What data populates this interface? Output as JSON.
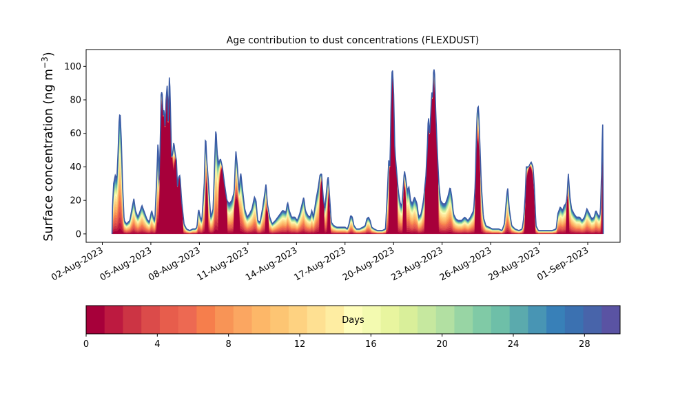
{
  "chart_data": {
    "type": "area",
    "title": "Age contribution to dust concentrations (FLEXDUST)",
    "ylabel_main": "Surface concentration (ng m",
    "ylabel_exp": "−3",
    "ylabel_close": ")",
    "ylim": [
      -5,
      110
    ],
    "yticks": [
      0,
      20,
      40,
      60,
      80,
      100
    ],
    "xlim_day": [
      0,
      33
    ],
    "xticks": [
      {
        "label": "02-Aug-2023",
        "day": 1
      },
      {
        "label": "05-Aug-2023",
        "day": 4
      },
      {
        "label": "08-Aug-2023",
        "day": 7
      },
      {
        "label": "11-Aug-2023",
        "day": 10
      },
      {
        "label": "14-Aug-2023",
        "day": 13
      },
      {
        "label": "17-Aug-2023",
        "day": 16
      },
      {
        "label": "20-Aug-2023",
        "day": 19
      },
      {
        "label": "23-Aug-2023",
        "day": 22
      },
      {
        "label": "26-Aug-2023",
        "day": 25
      },
      {
        "label": "29-Aug-2023",
        "day": 28
      },
      {
        "label": "01-Sep-2023",
        "day": 31
      }
    ],
    "total_profile": [
      [
        1.6,
        0
      ],
      [
        1.62,
        14
      ],
      [
        1.7,
        30
      ],
      [
        1.8,
        35
      ],
      [
        1.9,
        33
      ],
      [
        1.97,
        48
      ],
      [
        2.05,
        70
      ],
      [
        2.1,
        72
      ],
      [
        2.18,
        55
      ],
      [
        2.25,
        30
      ],
      [
        2.35,
        8
      ],
      [
        2.5,
        6
      ],
      [
        2.7,
        8
      ],
      [
        2.85,
        16
      ],
      [
        2.95,
        21
      ],
      [
        3.05,
        14
      ],
      [
        3.2,
        10
      ],
      [
        3.35,
        14
      ],
      [
        3.45,
        17
      ],
      [
        3.6,
        13
      ],
      [
        3.75,
        9
      ],
      [
        3.9,
        7
      ],
      [
        4.05,
        14
      ],
      [
        4.15,
        10
      ],
      [
        4.25,
        8
      ],
      [
        4.38,
        38
      ],
      [
        4.45,
        58
      ],
      [
        4.5,
        32
      ],
      [
        4.58,
        54
      ],
      [
        4.64,
        85
      ],
      [
        4.7,
        84
      ],
      [
        4.76,
        70
      ],
      [
        4.82,
        75
      ],
      [
        4.88,
        63
      ],
      [
        4.94,
        80
      ],
      [
        5.02,
        90
      ],
      [
        5.08,
        65
      ],
      [
        5.15,
        97
      ],
      [
        5.22,
        72
      ],
      [
        5.28,
        45
      ],
      [
        5.35,
        48
      ],
      [
        5.42,
        55
      ],
      [
        5.5,
        48
      ],
      [
        5.58,
        44
      ],
      [
        5.65,
        28
      ],
      [
        5.72,
        34
      ],
      [
        5.8,
        35
      ],
      [
        5.9,
        20
      ],
      [
        6.05,
        6
      ],
      [
        6.2,
        3
      ],
      [
        6.4,
        2
      ],
      [
        6.6,
        3
      ],
      [
        6.75,
        3
      ],
      [
        6.85,
        4
      ],
      [
        6.95,
        15
      ],
      [
        7.05,
        10
      ],
      [
        7.15,
        8
      ],
      [
        7.3,
        30
      ],
      [
        7.38,
        60
      ],
      [
        7.45,
        45
      ],
      [
        7.55,
        32
      ],
      [
        7.7,
        10
      ],
      [
        7.85,
        15
      ],
      [
        7.95,
        45
      ],
      [
        8.02,
        64
      ],
      [
        8.1,
        48
      ],
      [
        8.2,
        42
      ],
      [
        8.3,
        45
      ],
      [
        8.42,
        40
      ],
      [
        8.55,
        30
      ],
      [
        8.7,
        20
      ],
      [
        8.85,
        18
      ],
      [
        9.0,
        20
      ],
      [
        9.15,
        25
      ],
      [
        9.25,
        50
      ],
      [
        9.35,
        40
      ],
      [
        9.45,
        25
      ],
      [
        9.55,
        37
      ],
      [
        9.65,
        28
      ],
      [
        9.8,
        15
      ],
      [
        9.95,
        10
      ],
      [
        10.1,
        12
      ],
      [
        10.25,
        15
      ],
      [
        10.4,
        22
      ],
      [
        10.5,
        20
      ],
      [
        10.6,
        8
      ],
      [
        10.75,
        7
      ],
      [
        10.9,
        15
      ],
      [
        11.05,
        25
      ],
      [
        11.12,
        30
      ],
      [
        11.2,
        18
      ],
      [
        11.35,
        10
      ],
      [
        11.5,
        6
      ],
      [
        11.7,
        8
      ],
      [
        11.85,
        10
      ],
      [
        12.0,
        12
      ],
      [
        12.15,
        14
      ],
      [
        12.35,
        13
      ],
      [
        12.45,
        19
      ],
      [
        12.55,
        14
      ],
      [
        12.7,
        10
      ],
      [
        12.9,
        10
      ],
      [
        13.05,
        8
      ],
      [
        13.2,
        12
      ],
      [
        13.35,
        18
      ],
      [
        13.45,
        22
      ],
      [
        13.55,
        14
      ],
      [
        13.7,
        11
      ],
      [
        13.85,
        10
      ],
      [
        13.95,
        14
      ],
      [
        14.05,
        10
      ],
      [
        14.2,
        20
      ],
      [
        14.35,
        28
      ],
      [
        14.45,
        35
      ],
      [
        14.55,
        36
      ],
      [
        14.65,
        22
      ],
      [
        14.75,
        15
      ],
      [
        14.85,
        25
      ],
      [
        14.95,
        35
      ],
      [
        15.05,
        22
      ],
      [
        15.15,
        7
      ],
      [
        15.3,
        5
      ],
      [
        15.5,
        4
      ],
      [
        15.7,
        4
      ],
      [
        16.0,
        4
      ],
      [
        16.15,
        3
      ],
      [
        16.25,
        6
      ],
      [
        16.35,
        11
      ],
      [
        16.45,
        10
      ],
      [
        16.55,
        5
      ],
      [
        16.7,
        3
      ],
      [
        16.9,
        3
      ],
      [
        17.1,
        4
      ],
      [
        17.25,
        5
      ],
      [
        17.35,
        9
      ],
      [
        17.45,
        10
      ],
      [
        17.55,
        8
      ],
      [
        17.65,
        4
      ],
      [
        17.8,
        3
      ],
      [
        18.0,
        2
      ],
      [
        18.3,
        2
      ],
      [
        18.5,
        3
      ],
      [
        18.62,
        25
      ],
      [
        18.7,
        44
      ],
      [
        18.78,
        40
      ],
      [
        18.85,
        80
      ],
      [
        18.92,
        101
      ],
      [
        19.0,
        86
      ],
      [
        19.08,
        50
      ],
      [
        19.2,
        36
      ],
      [
        19.3,
        25
      ],
      [
        19.42,
        18
      ],
      [
        19.52,
        17
      ],
      [
        19.6,
        28
      ],
      [
        19.67,
        38
      ],
      [
        19.75,
        33
      ],
      [
        19.85,
        26
      ],
      [
        19.95,
        28
      ],
      [
        20.05,
        20
      ],
      [
        20.15,
        18
      ],
      [
        20.3,
        22
      ],
      [
        20.45,
        18
      ],
      [
        20.55,
        10
      ],
      [
        20.7,
        12
      ],
      [
        20.85,
        20
      ],
      [
        21.0,
        35
      ],
      [
        21.1,
        55
      ],
      [
        21.15,
        72
      ],
      [
        21.22,
        58
      ],
      [
        21.3,
        72
      ],
      [
        21.36,
        85
      ],
      [
        21.42,
        80
      ],
      [
        21.48,
        100
      ],
      [
        21.54,
        95
      ],
      [
        21.6,
        75
      ],
      [
        21.7,
        50
      ],
      [
        21.8,
        30
      ],
      [
        21.9,
        20
      ],
      [
        22.05,
        18
      ],
      [
        22.2,
        18
      ],
      [
        22.35,
        22
      ],
      [
        22.5,
        28
      ],
      [
        22.6,
        22
      ],
      [
        22.7,
        12
      ],
      [
        22.85,
        9
      ],
      [
        23.0,
        8
      ],
      [
        23.2,
        8
      ],
      [
        23.4,
        10
      ],
      [
        23.6,
        8
      ],
      [
        23.75,
        10
      ],
      [
        23.85,
        12
      ],
      [
        23.95,
        14
      ],
      [
        24.05,
        30
      ],
      [
        24.12,
        60
      ],
      [
        24.18,
        75
      ],
      [
        24.25,
        76
      ],
      [
        24.32,
        58
      ],
      [
        24.42,
        30
      ],
      [
        24.55,
        10
      ],
      [
        24.7,
        5
      ],
      [
        24.9,
        4
      ],
      [
        25.1,
        3
      ],
      [
        25.3,
        3
      ],
      [
        25.5,
        3
      ],
      [
        25.7,
        2
      ],
      [
        25.85,
        6
      ],
      [
        25.95,
        18
      ],
      [
        26.05,
        28
      ],
      [
        26.15,
        15
      ],
      [
        26.3,
        5
      ],
      [
        26.5,
        3
      ],
      [
        26.75,
        2
      ],
      [
        26.95,
        3
      ],
      [
        27.05,
        10
      ],
      [
        27.15,
        25
      ],
      [
        27.2,
        40
      ],
      [
        27.35,
        40
      ],
      [
        27.5,
        43
      ],
      [
        27.62,
        40
      ],
      [
        27.7,
        28
      ],
      [
        27.8,
        5
      ],
      [
        27.95,
        2
      ],
      [
        28.2,
        2
      ],
      [
        28.5,
        2
      ],
      [
        28.8,
        2
      ],
      [
        29.05,
        3
      ],
      [
        29.15,
        12
      ],
      [
        29.3,
        16
      ],
      [
        29.45,
        14
      ],
      [
        29.55,
        17
      ],
      [
        29.65,
        18
      ],
      [
        29.72,
        22
      ],
      [
        29.8,
        36
      ],
      [
        29.9,
        22
      ],
      [
        30.0,
        15
      ],
      [
        30.15,
        12
      ],
      [
        30.3,
        10
      ],
      [
        30.5,
        10
      ],
      [
        30.65,
        8
      ],
      [
        30.8,
        10
      ],
      [
        30.95,
        15
      ],
      [
        31.1,
        12
      ],
      [
        31.25,
        9
      ],
      [
        31.4,
        10
      ],
      [
        31.5,
        14
      ],
      [
        31.6,
        12
      ],
      [
        31.7,
        10
      ],
      [
        31.78,
        12
      ],
      [
        31.85,
        35
      ],
      [
        31.92,
        68
      ],
      [
        31.95,
        55
      ],
      [
        31.96,
        0
      ]
    ],
    "young_peaks": [
      [
        4.35,
        4.5,
        5.5
      ],
      [
        4.5,
        5.4,
        96
      ],
      [
        5.3,
        6.0,
        48
      ],
      [
        7.35,
        7.55,
        30
      ],
      [
        8.15,
        8.75,
        40
      ],
      [
        9.1,
        9.5,
        20
      ],
      [
        11.05,
        11.3,
        14
      ],
      [
        14.4,
        14.75,
        32
      ],
      [
        14.9,
        15.1,
        22
      ],
      [
        18.7,
        19.25,
        98
      ],
      [
        19.55,
        19.8,
        28
      ],
      [
        20.9,
        21.8,
        93
      ],
      [
        24.0,
        24.4,
        55
      ],
      [
        27.1,
        27.75,
        40
      ],
      [
        29.65,
        29.85,
        22
      ],
      [
        31.85,
        31.95,
        45
      ]
    ],
    "colorbar": {
      "label": "Days",
      "ticks": [
        0,
        4,
        8,
        12,
        16,
        20,
        24,
        28
      ],
      "min": 0,
      "max": 30,
      "colors": [
        "#a7003a",
        "#bd1a40",
        "#cc3444",
        "#db4b4a",
        "#e75d4c",
        "#ed6952",
        "#f67e4c",
        "#f89456",
        "#fba661",
        "#fdb768",
        "#fdc573",
        "#fed281",
        "#fee092",
        "#feeda2",
        "#fefdbb",
        "#f3fab0",
        "#e8f59f",
        "#d9ef9a",
        "#c6e89f",
        "#b2e0a2",
        "#98d5a4",
        "#80caa6",
        "#6ebfa8",
        "#5baaad",
        "#4895b4",
        "#3880b8",
        "#3b71b1",
        "#4864aa",
        "#5a53a3"
      ]
    },
    "colors": {
      "outline": "#3b5ba5",
      "axis": "#000000"
    }
  }
}
